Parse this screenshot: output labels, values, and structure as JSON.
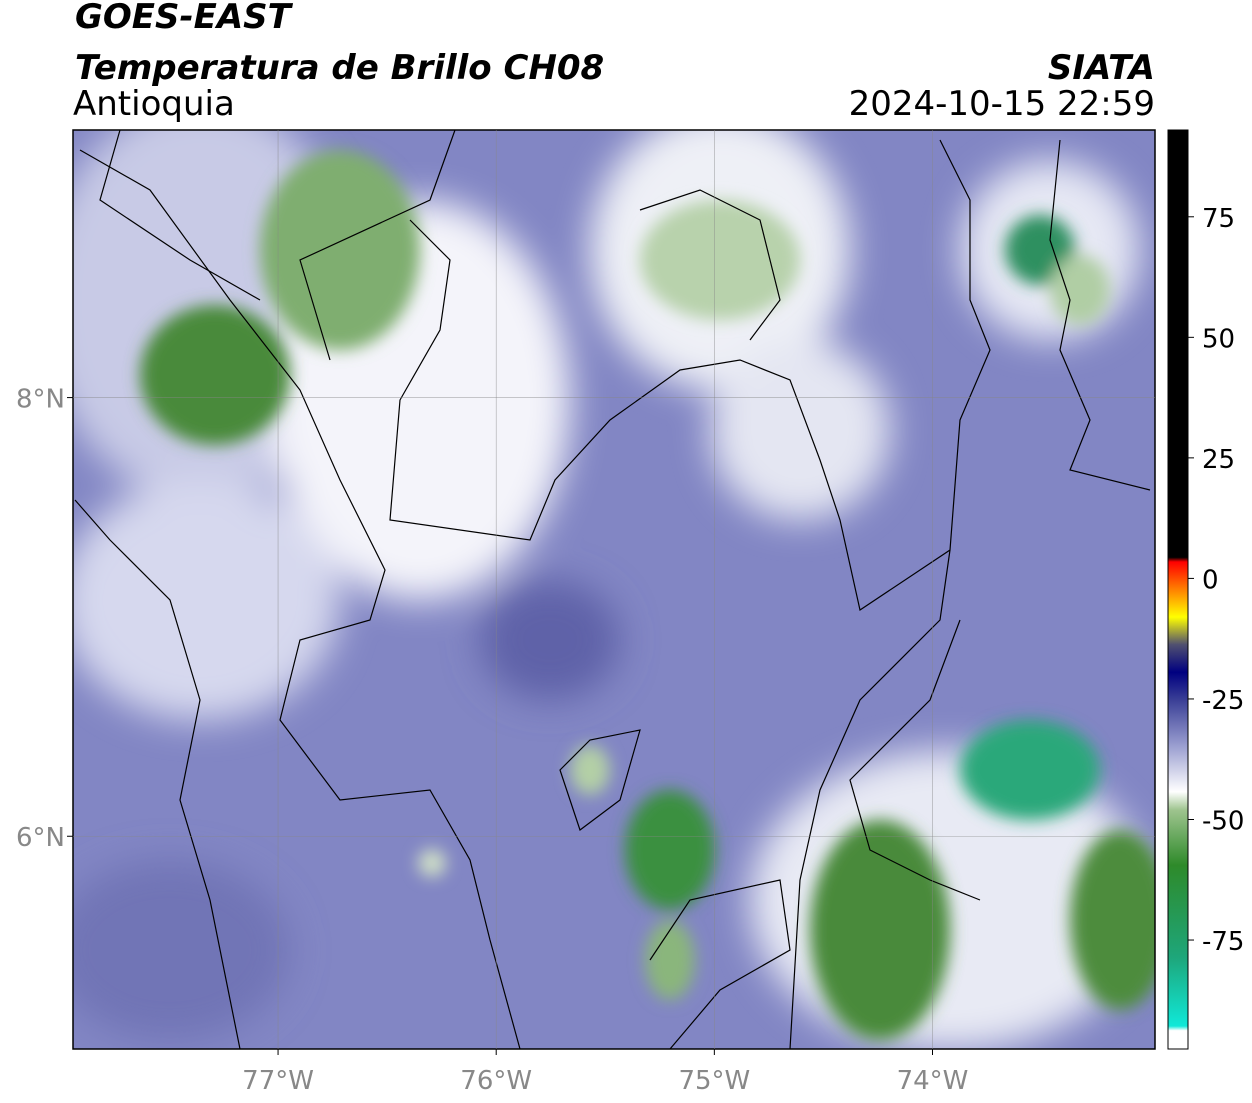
{
  "header": {
    "title": "GOES-EAST",
    "subtitle": "Temperatura de Brillo CH08",
    "region": "Antioquia",
    "source": "SIATA",
    "datetime": "2024-10-15 22:59"
  },
  "map": {
    "xlim": [
      -77.94,
      -72.98
    ],
    "ylim": [
      5.03,
      9.22
    ],
    "xticks": [
      {
        "value": -77,
        "label": "77°W"
      },
      {
        "value": -76,
        "label": "76°W"
      },
      {
        "value": -75,
        "label": "75°W"
      },
      {
        "value": -74,
        "label": "74°W"
      }
    ],
    "yticks": [
      {
        "value": 8,
        "label": "8°N"
      },
      {
        "value": 6,
        "label": "6°N"
      }
    ],
    "grid": true
  },
  "colorbar": {
    "lim": [
      -97.6,
      93
    ],
    "ticks": [
      75,
      50,
      25,
      0,
      -25,
      -50,
      -75
    ]
  }
}
